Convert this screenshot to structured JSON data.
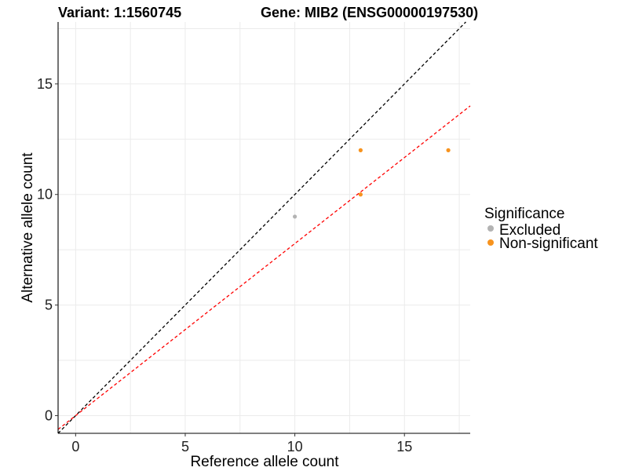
{
  "chart_data": {
    "type": "scatter",
    "title_left": "Variant: 1:1560745",
    "title_right": "Gene: MIB2 (ENSG00000197530)",
    "xlabel": "Reference allele count",
    "ylabel": "Alternative allele count",
    "xlim": [
      -0.8,
      18
    ],
    "ylim": [
      -0.8,
      17.8
    ],
    "x_ticks": [
      0,
      5,
      10,
      15
    ],
    "y_ticks": [
      0,
      5,
      10,
      15
    ],
    "grid": true,
    "legend": {
      "title": "Significance",
      "position": "right",
      "entries": [
        {
          "label": "Excluded",
          "color": "#b3b3b3"
        },
        {
          "label": "Non-significant",
          "color": "#f7931e"
        }
      ]
    },
    "series": [
      {
        "name": "Excluded",
        "color": "#b3b3b3",
        "points": [
          {
            "x": 10,
            "y": 9
          }
        ]
      },
      {
        "name": "Non-significant",
        "color": "#f7931e",
        "points": [
          {
            "x": 13,
            "y": 12
          },
          {
            "x": 13,
            "y": 10
          },
          {
            "x": 17,
            "y": 12
          }
        ]
      }
    ],
    "reference_lines": [
      {
        "slope": 1,
        "intercept": 0,
        "color": "#000000",
        "style": "dashed"
      },
      {
        "slope": 0.778,
        "intercept": 0,
        "color": "#ff0000",
        "style": "dashed"
      }
    ]
  }
}
